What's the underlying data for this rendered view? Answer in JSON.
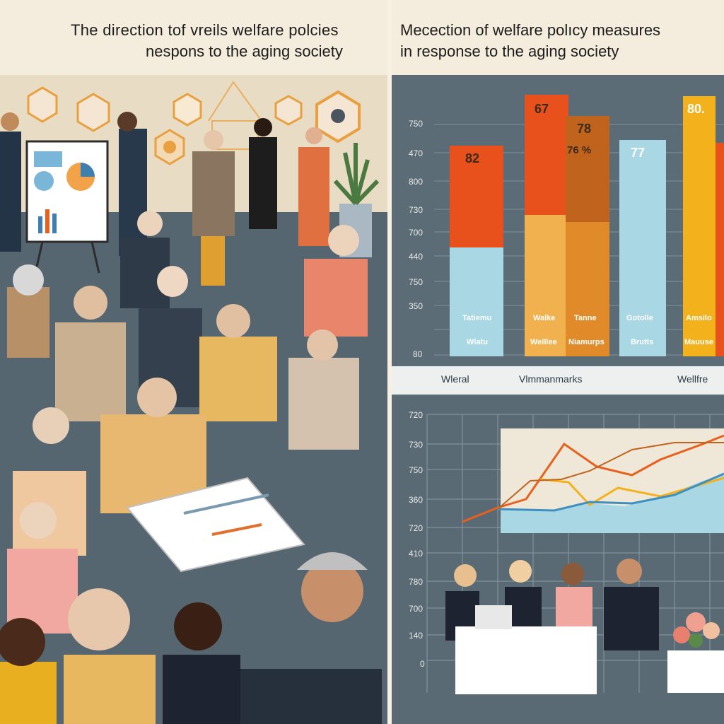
{
  "left": {
    "title_line1": "The direction tof vreils welfare polcies",
    "title_line2": "nespons to the aging society"
  },
  "right": {
    "title_line1": "Mecection of welfare polıcy measures",
    "title_line2": "in response  to  the aging society",
    "bar_chart": {
      "y_ticks": [
        "750",
        "470",
        "800",
        "730",
        "700",
        "440",
        "750",
        "350",
        "80"
      ],
      "bars": [
        {
          "value_label": "82",
          "label_top": "Tatiemu",
          "label_bottom": "Wlatu",
          "color_top": "#e8501c",
          "color_bottom": "#a9d8e4"
        },
        {
          "value_label": "67",
          "label_top": "Walke",
          "label_bottom": "Welllee",
          "color_top": "#e8501c",
          "color_bottom": "#f2b14f"
        },
        {
          "value_label": "78",
          "value_label_2": "76 %",
          "label_top": "Tanne",
          "label_bottom": "Niamurps",
          "color_top": "#c0631d",
          "color_bottom": "#e08a2a"
        },
        {
          "value_label": "77",
          "label_top": "Gotolle",
          "label_bottom": "Brutts",
          "color_top": "#a9d8e4",
          "color_bottom": "#a9d8e4"
        },
        {
          "value_label": "80.",
          "label_top": "Amsilo",
          "label_bottom": "Mauuse",
          "color_top": "#f3b21c",
          "color_bottom": "#f3b21c"
        }
      ],
      "categories": [
        "Wleral",
        "Vlmmanmarks",
        "Wellfre"
      ]
    },
    "line_chart": {
      "y_ticks": [
        "720",
        "730",
        "750",
        "360",
        "720",
        "410",
        "780",
        "700",
        "140",
        "0"
      ]
    }
  }
}
